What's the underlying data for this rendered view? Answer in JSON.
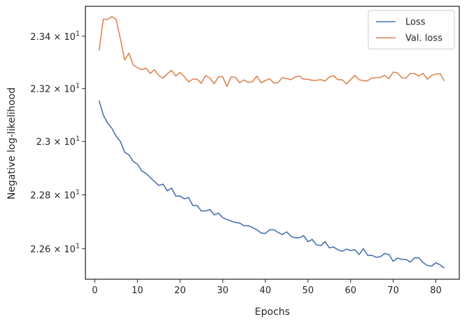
{
  "chart_data": {
    "type": "line",
    "xlabel": "Epochs",
    "ylabel": "Negative log-likelihood",
    "xlim": [
      -2.2,
      85.5
    ],
    "ylim": [
      22.487,
      23.515
    ],
    "log_y": true,
    "grid": false,
    "legend_position": "top-right",
    "x_ticks": [
      0,
      10,
      20,
      30,
      40,
      50,
      60,
      70,
      80
    ],
    "y_ticks": [
      {
        "value": 22.6,
        "mantissa": "2.26",
        "base": "10",
        "exponent": "1"
      },
      {
        "value": 22.8,
        "mantissa": "2.28",
        "base": "10",
        "exponent": "1"
      },
      {
        "value": 23.0,
        "mantissa": "2.3",
        "base": "10",
        "exponent": "1"
      },
      {
        "value": 23.2,
        "mantissa": "2.32",
        "base": "10",
        "exponent": "1"
      },
      {
        "value": 23.4,
        "mantissa": "2.34",
        "base": "10",
        "exponent": "1"
      }
    ],
    "times_sign": "×",
    "series": [
      {
        "name": "Loss",
        "color": "#4c72b0",
        "x": [
          1,
          2,
          3,
          4,
          5,
          6,
          7,
          8,
          9,
          10,
          11,
          12,
          13,
          14,
          15,
          16,
          17,
          18,
          19,
          20,
          21,
          22,
          23,
          24,
          25,
          26,
          27,
          28,
          29,
          30,
          31,
          32,
          33,
          34,
          35,
          36,
          37,
          38,
          39,
          40,
          41,
          42,
          43,
          44,
          45,
          46,
          47,
          48,
          49,
          50,
          51,
          52,
          53,
          54,
          55,
          56,
          57,
          58,
          59,
          60,
          61,
          62,
          63,
          64,
          65,
          66,
          67,
          68,
          69,
          70,
          71,
          72,
          73,
          74,
          75,
          76,
          77,
          78,
          79,
          80,
          81,
          82
        ],
        "values": [
          23.155,
          23.1,
          23.07,
          23.05,
          23.02,
          23.0,
          22.96,
          22.95,
          22.925,
          22.915,
          22.89,
          22.88,
          22.865,
          22.85,
          22.835,
          22.84,
          22.815,
          22.825,
          22.795,
          22.795,
          22.785,
          22.79,
          22.76,
          22.76,
          22.74,
          22.74,
          22.745,
          22.725,
          22.732,
          22.715,
          22.708,
          22.702,
          22.697,
          22.695,
          22.685,
          22.685,
          22.678,
          22.67,
          22.658,
          22.656,
          22.67,
          22.67,
          22.66,
          22.652,
          22.662,
          22.646,
          22.64,
          22.64,
          22.648,
          22.626,
          22.634,
          22.614,
          22.611,
          22.626,
          22.603,
          22.606,
          22.596,
          22.59,
          22.598,
          22.593,
          22.596,
          22.578,
          22.6,
          22.575,
          22.575,
          22.568,
          22.57,
          22.582,
          22.578,
          22.553,
          22.565,
          22.56,
          22.56,
          22.55,
          22.566,
          22.566,
          22.548,
          22.538,
          22.535,
          22.548,
          22.54,
          22.528
        ]
      },
      {
        "name": "Val. loss",
        "color": "#dd8452",
        "x": [
          1,
          2,
          3,
          4,
          5,
          6,
          7,
          8,
          9,
          10,
          11,
          12,
          13,
          14,
          15,
          16,
          17,
          18,
          19,
          20,
          21,
          22,
          23,
          24,
          25,
          26,
          27,
          28,
          29,
          30,
          31,
          32,
          33,
          34,
          35,
          36,
          37,
          38,
          39,
          40,
          41,
          42,
          43,
          44,
          45,
          46,
          47,
          48,
          49,
          50,
          51,
          52,
          53,
          54,
          55,
          56,
          57,
          58,
          59,
          60,
          61,
          62,
          63,
          64,
          65,
          66,
          67,
          68,
          69,
          70,
          71,
          72,
          73,
          74,
          75,
          76,
          77,
          78,
          79,
          80,
          81,
          82
        ],
        "values": [
          23.345,
          23.465,
          23.465,
          23.475,
          23.465,
          23.39,
          23.31,
          23.335,
          23.29,
          23.28,
          23.272,
          23.278,
          23.258,
          23.272,
          23.25,
          23.24,
          23.256,
          23.27,
          23.248,
          23.262,
          23.245,
          23.226,
          23.236,
          23.236,
          23.22,
          23.25,
          23.24,
          23.218,
          23.245,
          23.245,
          23.208,
          23.245,
          23.243,
          23.222,
          23.233,
          23.224,
          23.226,
          23.248,
          23.222,
          23.231,
          23.238,
          23.221,
          23.223,
          23.242,
          23.238,
          23.234,
          23.244,
          23.248,
          23.236,
          23.236,
          23.231,
          23.232,
          23.234,
          23.229,
          23.244,
          23.249,
          23.234,
          23.234,
          23.218,
          23.234,
          23.25,
          23.234,
          23.23,
          23.23,
          23.241,
          23.241,
          23.243,
          23.25,
          23.238,
          23.263,
          23.26,
          23.242,
          23.24,
          23.258,
          23.257,
          23.248,
          23.258,
          23.236,
          23.25,
          23.255,
          23.257,
          23.229
        ]
      }
    ]
  }
}
